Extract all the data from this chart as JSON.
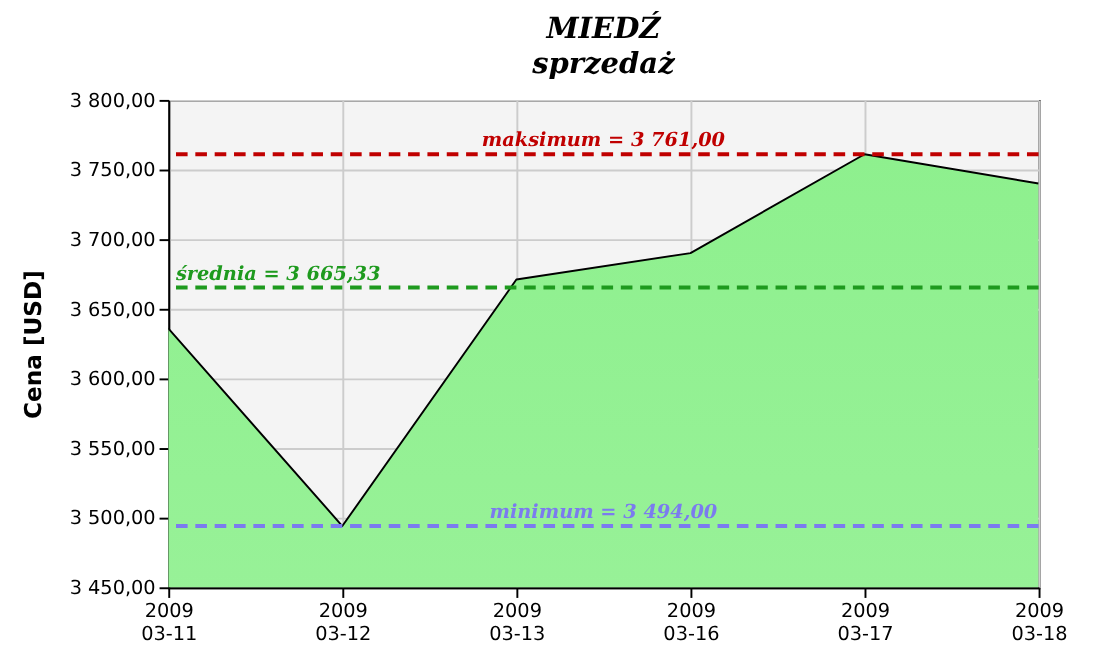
{
  "chart_data": {
    "type": "area",
    "title": "MIEDŹ",
    "subtitle": "sprzedaż",
    "ylabel": "Cena [USD]",
    "categories": [
      "2009\n03-11",
      "2009\n03-12",
      "2009\n03-13",
      "2009\n03-16",
      "2009\n03-17",
      "2009\n03-18"
    ],
    "series": [
      {
        "color": "#8ef08e",
        "values": [
          3636,
          3494,
          3671,
          3690,
          3761,
          3740
        ]
      }
    ],
    "ylim": [
      3450,
      3800
    ],
    "yticks": [
      {
        "value": 3450,
        "label": "3 450,00"
      },
      {
        "value": 3500,
        "label": "3 500,00"
      },
      {
        "value": 3550,
        "label": "3 550,00"
      },
      {
        "value": 3600,
        "label": "3 600,00"
      },
      {
        "value": 3650,
        "label": "3 650,00"
      },
      {
        "value": 3700,
        "label": "3 700,00"
      },
      {
        "value": 3750,
        "label": "3 750,00"
      },
      {
        "value": 3800,
        "label": "3 800,00"
      }
    ],
    "ref_lines": [
      {
        "axis": "y",
        "value": 3761,
        "label": "maksimum = 3 761,00",
        "color": "#c00000",
        "line_style": "dashed"
      },
      {
        "axis": "y",
        "value": 3665.33,
        "label": "średnia = 3 665,33",
        "color": "#1e9a1e",
        "line_style": "dashed"
      },
      {
        "axis": "y",
        "value": 3494,
        "label": "minimum = 3 494,00",
        "color": "#7b7bef",
        "line_style": "dashed"
      }
    ],
    "grid": true
  }
}
